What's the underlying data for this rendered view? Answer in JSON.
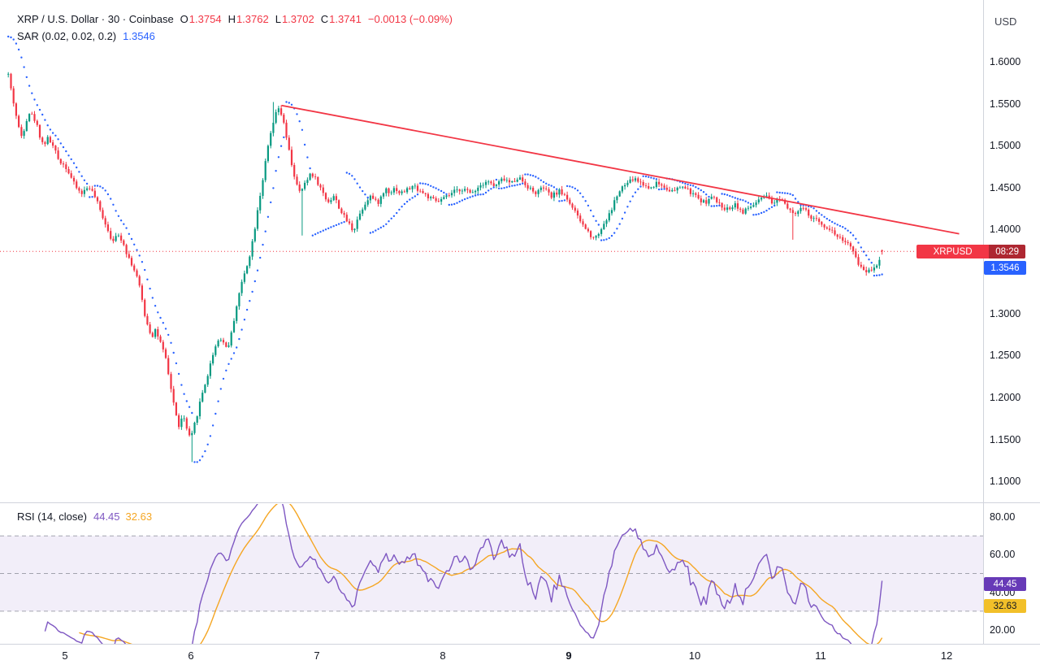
{
  "header": {
    "currency": "USD"
  },
  "legend": {
    "symbol_title": "XRP / U.S. Dollar · 30 · Coinbase",
    "o_label": "O",
    "o": "1.3754",
    "h_label": "H",
    "h": "1.3762",
    "l_label": "L",
    "l": "1.3702",
    "c_label": "C",
    "c": "1.3741",
    "change": "−0.0013 (−0.09%)",
    "sar_title": "SAR (0.02, 0.02, 0.2)",
    "sar_value": "1.3546",
    "rsi_title": "RSI (14, close)",
    "rsi_value": "44.45",
    "rsi_ma_value": "32.63"
  },
  "price_labels": {
    "symbol": "XRPUSD",
    "countdown": "08:29",
    "sar_axis": "1.3546",
    "rsi_axis": "44.45",
    "rsi_ma_axis": "32.63"
  },
  "colors": {
    "up": "#089981",
    "down": "#f23645",
    "sar": "#2962ff",
    "trendline": "#f23645",
    "price_line": "#f23645",
    "rsi_line": "#7e57c2",
    "rsi_ma_line": "#f5a623",
    "band": "rgba(126,87,194,0.10)",
    "level_dash": "#787b86",
    "separator": "#d1d4dc"
  },
  "chart_data": {
    "type": "candlestick",
    "title": "XRP / U.S. Dollar · 30 · Coinbase",
    "symbol": "XRPUSD",
    "exchange": "Coinbase",
    "interval_minutes": 30,
    "last": {
      "open": 1.3754,
      "high": 1.3762,
      "low": 1.3702,
      "close": 1.3741,
      "change": -0.0013,
      "change_pct": -0.09
    },
    "price_line": {
      "value": 1.3741,
      "countdown": "08:29"
    },
    "x_axis": {
      "ticks": [
        5,
        6,
        7,
        8,
        9,
        10,
        11,
        12
      ],
      "bold_tick": 9,
      "domain_days": [
        4.484,
        12.29
      ],
      "candles_per_day": 48
    },
    "y_axis": {
      "unit": "USD",
      "ticks": [
        1.6,
        1.55,
        1.5,
        1.45,
        1.4,
        1.3,
        1.25,
        1.2,
        1.15,
        1.1
      ],
      "domain": [
        1.075,
        1.6736
      ]
    },
    "sar": {
      "params": [
        0.02,
        0.02,
        0.2
      ],
      "last": 1.3546,
      "initial": 1.63,
      "initial_trend": "down"
    },
    "trendline": {
      "from": [
        6.72,
        1.548
      ],
      "to": [
        12.1,
        1.395
      ]
    },
    "rsi": {
      "length": 14,
      "source": "close",
      "last": 44.45,
      "ma_length": 14,
      "ma_last": 32.63,
      "levels": [
        70,
        50,
        30
      ],
      "ticks": [
        80,
        60,
        40,
        20
      ],
      "domain": [
        12.7,
        86.9
      ]
    },
    "series": {
      "close_path": [
        [
          4.55,
          1.585
        ],
        [
          4.57,
          1.568
        ],
        [
          4.6,
          1.545
        ],
        [
          4.62,
          1.53
        ],
        [
          4.65,
          1.51
        ],
        [
          4.68,
          1.522
        ],
        [
          4.71,
          1.54
        ],
        [
          4.74,
          1.536
        ],
        [
          4.77,
          1.528
        ],
        [
          4.8,
          1.512
        ],
        [
          4.83,
          1.5
        ],
        [
          4.86,
          1.509
        ],
        [
          4.89,
          1.504
        ],
        [
          4.92,
          1.494
        ],
        [
          4.95,
          1.483
        ],
        [
          4.98,
          1.479
        ],
        [
          5.01,
          1.474
        ],
        [
          5.04,
          1.465
        ],
        [
          5.07,
          1.455
        ],
        [
          5.1,
          1.448
        ],
        [
          5.13,
          1.443
        ],
        [
          5.16,
          1.447
        ],
        [
          5.19,
          1.452
        ],
        [
          5.22,
          1.444
        ],
        [
          5.25,
          1.435
        ],
        [
          5.28,
          1.422
        ],
        [
          5.31,
          1.412
        ],
        [
          5.34,
          1.4
        ],
        [
          5.37,
          1.388
        ],
        [
          5.4,
          1.39
        ],
        [
          5.43,
          1.393
        ],
        [
          5.46,
          1.386
        ],
        [
          5.49,
          1.372
        ],
        [
          5.52,
          1.362
        ],
        [
          5.55,
          1.352
        ],
        [
          5.58,
          1.34
        ],
        [
          5.61,
          1.318
        ],
        [
          5.63,
          1.3
        ],
        [
          5.66,
          1.285
        ],
        [
          5.69,
          1.272
        ],
        [
          5.72,
          1.282
        ],
        [
          5.74,
          1.272
        ],
        [
          5.77,
          1.26
        ],
        [
          5.8,
          1.245
        ],
        [
          5.82,
          1.228
        ],
        [
          5.84,
          1.212
        ],
        [
          5.86,
          1.196
        ],
        [
          5.88,
          1.18
        ],
        [
          5.9,
          1.165
        ],
        [
          5.92,
          1.172
        ],
        [
          5.94,
          1.178
        ],
        [
          5.96,
          1.166
        ],
        [
          5.98,
          1.155
        ],
        [
          6.0,
          1.15
        ],
        [
          6.02,
          1.163
        ],
        [
          6.05,
          1.18
        ],
        [
          6.08,
          1.2
        ],
        [
          6.11,
          1.215
        ],
        [
          6.14,
          1.23
        ],
        [
          6.17,
          1.25
        ],
        [
          6.2,
          1.263
        ],
        [
          6.23,
          1.272
        ],
        [
          6.26,
          1.265
        ],
        [
          6.29,
          1.258
        ],
        [
          6.32,
          1.275
        ],
        [
          6.35,
          1.3
        ],
        [
          6.38,
          1.322
        ],
        [
          6.41,
          1.34
        ],
        [
          6.44,
          1.355
        ],
        [
          6.47,
          1.372
        ],
        [
          6.5,
          1.395
        ],
        [
          6.53,
          1.425
        ],
        [
          6.56,
          1.45
        ],
        [
          6.59,
          1.478
        ],
        [
          6.62,
          1.505
        ],
        [
          6.65,
          1.525
        ],
        [
          6.68,
          1.54
        ],
        [
          6.7,
          1.545
        ],
        [
          6.72,
          1.536
        ],
        [
          6.74,
          1.524
        ],
        [
          6.77,
          1.5
        ],
        [
          6.8,
          1.478
        ],
        [
          6.83,
          1.458
        ],
        [
          6.86,
          1.444
        ],
        [
          6.89,
          1.45
        ],
        [
          6.92,
          1.458
        ],
        [
          6.95,
          1.468
        ],
        [
          6.98,
          1.463
        ],
        [
          7.01,
          1.455
        ],
        [
          7.04,
          1.446
        ],
        [
          7.07,
          1.437
        ],
        [
          7.1,
          1.433
        ],
        [
          7.13,
          1.441
        ],
        [
          7.16,
          1.432
        ],
        [
          7.19,
          1.422
        ],
        [
          7.23,
          1.412
        ],
        [
          7.26,
          1.406
        ],
        [
          7.29,
          1.398
        ],
        [
          7.32,
          1.412
        ],
        [
          7.36,
          1.425
        ],
        [
          7.39,
          1.433
        ],
        [
          7.42,
          1.441
        ],
        [
          7.45,
          1.436
        ],
        [
          7.48,
          1.431
        ],
        [
          7.52,
          1.441
        ],
        [
          7.55,
          1.449
        ],
        [
          7.58,
          1.444
        ],
        [
          7.62,
          1.45
        ],
        [
          7.66,
          1.443
        ],
        [
          7.71,
          1.447
        ],
        [
          7.77,
          1.452
        ],
        [
          7.83,
          1.445
        ],
        [
          7.9,
          1.437
        ],
        [
          7.96,
          1.433
        ],
        [
          8.03,
          1.439
        ],
        [
          8.09,
          1.445
        ],
        [
          8.16,
          1.449
        ],
        [
          8.22,
          1.443
        ],
        [
          8.29,
          1.452
        ],
        [
          8.35,
          1.459
        ],
        [
          8.41,
          1.451
        ],
        [
          8.48,
          1.461
        ],
        [
          8.54,
          1.455
        ],
        [
          8.6,
          1.463
        ],
        [
          8.67,
          1.452
        ],
        [
          8.73,
          1.443
        ],
        [
          8.8,
          1.45
        ],
        [
          8.86,
          1.439
        ],
        [
          8.92,
          1.446
        ],
        [
          8.97,
          1.441
        ],
        [
          9.02,
          1.429
        ],
        [
          9.07,
          1.415
        ],
        [
          9.12,
          1.404
        ],
        [
          9.17,
          1.394
        ],
        [
          9.21,
          1.39
        ],
        [
          9.25,
          1.399
        ],
        [
          9.29,
          1.41
        ],
        [
          9.33,
          1.42
        ],
        [
          9.37,
          1.437
        ],
        [
          9.42,
          1.449
        ],
        [
          9.46,
          1.455
        ],
        [
          9.52,
          1.461
        ],
        [
          9.58,
          1.455
        ],
        [
          9.64,
          1.449
        ],
        [
          9.7,
          1.456
        ],
        [
          9.77,
          1.45
        ],
        [
          9.83,
          1.445
        ],
        [
          9.9,
          1.452
        ],
        [
          9.96,
          1.445
        ],
        [
          10.02,
          1.438
        ],
        [
          10.08,
          1.432
        ],
        [
          10.14,
          1.439
        ],
        [
          10.2,
          1.429
        ],
        [
          10.26,
          1.424
        ],
        [
          10.32,
          1.431
        ],
        [
          10.38,
          1.42
        ],
        [
          10.44,
          1.427
        ],
        [
          10.5,
          1.433
        ],
        [
          10.56,
          1.44
        ],
        [
          10.62,
          1.43
        ],
        [
          10.68,
          1.439
        ],
        [
          10.74,
          1.427
        ],
        [
          10.8,
          1.419
        ],
        [
          10.86,
          1.426
        ],
        [
          10.92,
          1.414
        ],
        [
          10.98,
          1.41
        ],
        [
          11.04,
          1.404
        ],
        [
          11.1,
          1.397
        ],
        [
          11.16,
          1.389
        ],
        [
          11.21,
          1.385
        ],
        [
          11.26,
          1.372
        ],
        [
          11.31,
          1.357
        ],
        [
          11.36,
          1.35
        ],
        [
          11.41,
          1.354
        ],
        [
          11.45,
          1.359
        ],
        [
          11.49,
          1.374
        ]
      ],
      "spikes_low": [
        [
          6.01,
          1.123
        ],
        [
          6.88,
          1.393
        ],
        [
          10.77,
          1.388
        ]
      ],
      "spikes_high": [
        [
          6.66,
          1.552
        ]
      ]
    }
  }
}
